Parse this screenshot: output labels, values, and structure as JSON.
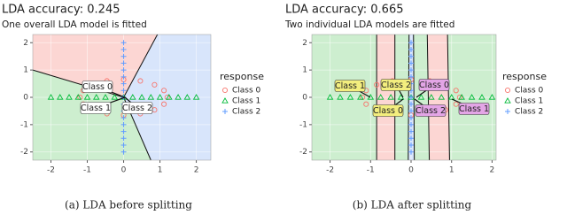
{
  "chart_data": [
    {
      "type": "scatter",
      "title": "LDA accuracy: 0.245",
      "subtitle": "One overall LDA model is fitted",
      "caption": "(a) LDA before splitting",
      "legend_title": "response",
      "grid": true,
      "xlim": [
        -2.5,
        2.4
      ],
      "ylim": [
        -2.3,
        2.3
      ],
      "xticks": [
        -2,
        -1,
        0,
        1,
        2
      ],
      "yticks": [
        -2,
        -1,
        0,
        1,
        2
      ],
      "series": [
        {
          "name": "Class 0",
          "color": "#F8766D",
          "marker": "circle",
          "x": [
            1.2,
            1.11,
            0.85,
            0.46,
            0,
            -0.46,
            -0.85,
            -1.11,
            -1.2,
            -1.11,
            -0.85,
            -0.46,
            0,
            0.46,
            0.85,
            1.11
          ],
          "y": [
            0,
            0.25,
            0.46,
            0.6,
            0.65,
            0.6,
            0.46,
            0.25,
            0,
            -0.25,
            -0.46,
            -0.6,
            -0.65,
            -0.6,
            -0.46,
            -0.25
          ]
        },
        {
          "name": "Class 1",
          "color": "#00BA38",
          "marker": "triangle",
          "x": [
            -2,
            -1.75,
            -1.5,
            -1.25,
            -1,
            -0.75,
            -0.5,
            -0.25,
            0,
            0.25,
            0.5,
            0.75,
            1,
            1.25,
            1.5,
            1.75,
            2
          ],
          "y": [
            0,
            0,
            0,
            0,
            0,
            0,
            0,
            0,
            0,
            0,
            0,
            0,
            0,
            0,
            0,
            0,
            0
          ]
        },
        {
          "name": "Class 2",
          "color": "#619CFF",
          "marker": "plus",
          "x": [
            0,
            0,
            0,
            0,
            0,
            0,
            0,
            0,
            0,
            0,
            0,
            0,
            0,
            0,
            0,
            0,
            0
          ],
          "y": [
            -2,
            -1.75,
            -1.5,
            -1.25,
            -1,
            -0.75,
            -0.5,
            -0.25,
            0,
            0.25,
            0.5,
            0.75,
            1,
            1.25,
            1.5,
            1.75,
            2
          ]
        }
      ],
      "annotations": [
        {
          "text": "Class 0",
          "color": "#ffffff"
        },
        {
          "text": "Class 1",
          "color": "#ffffff"
        },
        {
          "text": "Class 2",
          "color": "#ffffff"
        }
      ]
    },
    {
      "type": "scatter",
      "title": "LDA accuracy: 0.665",
      "subtitle": "Two individual LDA models are fitted",
      "caption": "(b) LDA after splitting",
      "legend_title": "response",
      "grid": true,
      "xlim": [
        -2.45,
        2.1
      ],
      "ylim": [
        -2.3,
        2.3
      ],
      "xticks": [
        -2,
        -1,
        0,
        1,
        2
      ],
      "yticks": [
        -2,
        -1,
        0,
        1,
        2
      ],
      "series": [
        {
          "name": "Class 0",
          "color": "#F8766D",
          "marker": "circle",
          "x": [
            1.2,
            1.11,
            0.85,
            0.46,
            0,
            -0.46,
            -0.85,
            -1.11,
            -1.2,
            -1.11,
            -0.85,
            -0.46,
            0,
            0.46,
            0.85,
            1.11
          ],
          "y": [
            0,
            0.25,
            0.46,
            0.6,
            0.65,
            0.6,
            0.46,
            0.25,
            0,
            -0.25,
            -0.46,
            -0.6,
            -0.65,
            -0.6,
            -0.46,
            -0.25
          ]
        },
        {
          "name": "Class 1",
          "color": "#00BA38",
          "marker": "triangle",
          "x": [
            -2,
            -1.75,
            -1.5,
            -1.25,
            -1,
            -0.75,
            -0.5,
            -0.25,
            0,
            0.25,
            0.5,
            0.75,
            1,
            1.25,
            1.5,
            1.75,
            2
          ],
          "y": [
            0,
            0,
            0,
            0,
            0,
            0,
            0,
            0,
            0,
            0,
            0,
            0,
            0,
            0,
            0,
            0,
            0
          ]
        },
        {
          "name": "Class 2",
          "color": "#619CFF",
          "marker": "plus",
          "x": [
            0,
            0,
            0,
            0,
            0,
            0,
            0,
            0,
            0,
            0,
            0,
            0,
            0,
            0,
            0,
            0,
            0
          ],
          "y": [
            -2,
            -1.75,
            -1.5,
            -1.25,
            -1,
            -0.75,
            -0.5,
            -0.25,
            0,
            0.25,
            0.5,
            0.75,
            1,
            1.25,
            1.5,
            1.75,
            2
          ]
        }
      ],
      "annotations": [
        {
          "text": "Class 1",
          "color": "#f3ee7e"
        },
        {
          "text": "Class 2",
          "color": "#f3ee7e"
        },
        {
          "text": "Class 0",
          "color": "#f3ee7e"
        },
        {
          "text": "Class 0",
          "color": "#e3a5e6"
        },
        {
          "text": "Class 2",
          "color": "#e3a5e6"
        },
        {
          "text": "Class 1",
          "color": "#e3a5e6"
        }
      ]
    }
  ]
}
